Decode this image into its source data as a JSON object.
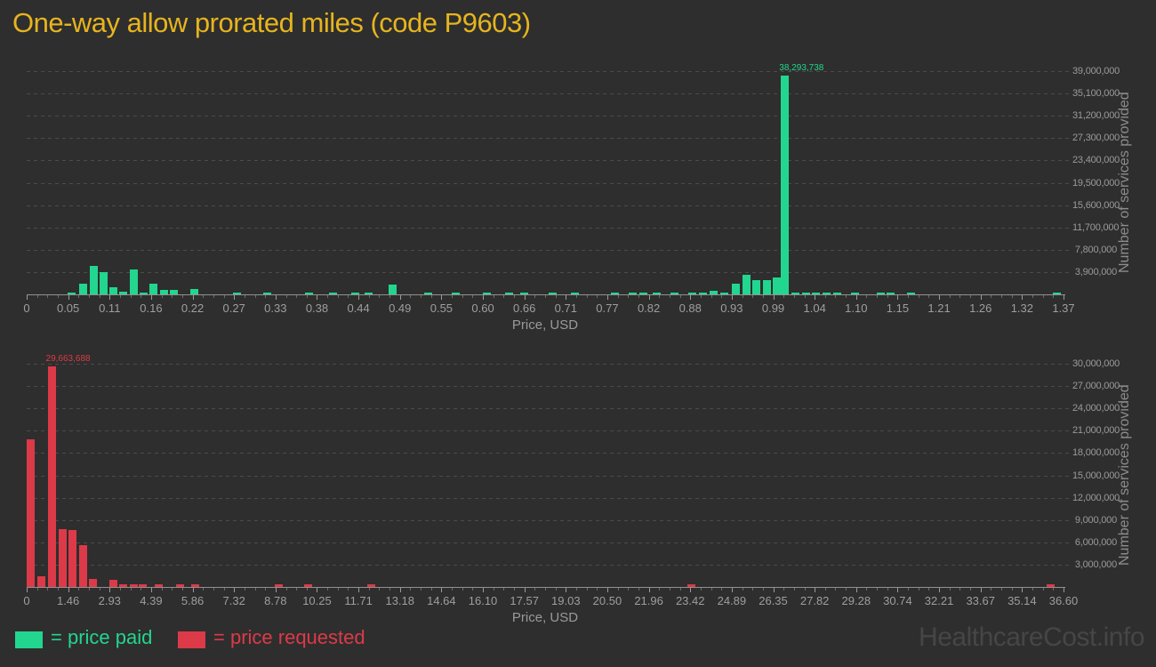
{
  "title": "One-way allow prorated miles (code P9603)",
  "watermark": "HealthcareCost.info",
  "colors": {
    "background": "#2e2e2e",
    "title": "#e6b41e",
    "price_paid": "#23d68f",
    "price_requested": "#dc3a48",
    "axis_text": "#9a9a9a",
    "watermark": "#464646"
  },
  "legend": {
    "items": [
      {
        "label": "= price paid",
        "color": "#23d68f"
      },
      {
        "label": "= price requested",
        "color": "#dc3a48"
      }
    ]
  },
  "chart_data": [
    {
      "type": "bar",
      "series": "price paid",
      "color": "#23d68f",
      "xlabel": "Price, USD",
      "ylabel": "Number of services provided",
      "xlim": [
        0,
        1.37
      ],
      "ylim": [
        0,
        39000000
      ],
      "grid": "dashed-horizontal",
      "legend_position": "bottom-left",
      "x_tick_labels": [
        "0",
        "0.05",
        "0.11",
        "0.16",
        "0.22",
        "0.27",
        "0.33",
        "0.38",
        "0.44",
        "0.49",
        "0.55",
        "0.60",
        "0.66",
        "0.71",
        "0.77",
        "0.82",
        "0.88",
        "0.93",
        "0.99",
        "1.04",
        "1.10",
        "1.15",
        "1.21",
        "1.26",
        "1.32",
        "1.37"
      ],
      "y_tick_values": [
        3900000,
        7800000,
        11700000,
        15600000,
        19500000,
        23400000,
        27300000,
        31200000,
        35100000,
        39000000
      ],
      "peak_label": "38,293,738",
      "bars": [
        {
          "price": 0.059,
          "value": 300000
        },
        {
          "price": 0.075,
          "value": 1850000
        },
        {
          "price": 0.089,
          "value": 5000000
        },
        {
          "price": 0.102,
          "value": 3900000
        },
        {
          "price": 0.115,
          "value": 1300000
        },
        {
          "price": 0.128,
          "value": 500000
        },
        {
          "price": 0.141,
          "value": 4400000
        },
        {
          "price": 0.155,
          "value": 250000
        },
        {
          "price": 0.168,
          "value": 1800000
        },
        {
          "price": 0.181,
          "value": 700000
        },
        {
          "price": 0.195,
          "value": 850000
        },
        {
          "price": 0.222,
          "value": 1000000
        },
        {
          "price": 0.278,
          "value": 250000
        },
        {
          "price": 0.318,
          "value": 250000
        },
        {
          "price": 0.373,
          "value": 250000
        },
        {
          "price": 0.405,
          "value": 250000
        },
        {
          "price": 0.434,
          "value": 200000
        },
        {
          "price": 0.452,
          "value": 200000
        },
        {
          "price": 0.484,
          "value": 1750000
        },
        {
          "price": 0.531,
          "value": 200000
        },
        {
          "price": 0.567,
          "value": 200000
        },
        {
          "price": 0.608,
          "value": 200000
        },
        {
          "price": 0.637,
          "value": 250000
        },
        {
          "price": 0.657,
          "value": 250000
        },
        {
          "price": 0.695,
          "value": 200000
        },
        {
          "price": 0.724,
          "value": 250000
        },
        {
          "price": 0.777,
          "value": 250000
        },
        {
          "price": 0.801,
          "value": 200000
        },
        {
          "price": 0.815,
          "value": 250000
        },
        {
          "price": 0.833,
          "value": 250000
        },
        {
          "price": 0.856,
          "value": 250000
        },
        {
          "price": 0.88,
          "value": 200000
        },
        {
          "price": 0.893,
          "value": 300000
        },
        {
          "price": 0.908,
          "value": 550000
        },
        {
          "price": 0.922,
          "value": 250000
        },
        {
          "price": 0.937,
          "value": 1800000
        },
        {
          "price": 0.951,
          "value": 3400000
        },
        {
          "price": 0.964,
          "value": 2500000
        },
        {
          "price": 0.978,
          "value": 2550000
        },
        {
          "price": 0.991,
          "value": 2900000
        },
        {
          "price": 1.002,
          "value": 38293738
        },
        {
          "price": 1.016,
          "value": 250000
        },
        {
          "price": 1.03,
          "value": 250000
        },
        {
          "price": 1.043,
          "value": 250000
        },
        {
          "price": 1.057,
          "value": 250000
        },
        {
          "price": 1.071,
          "value": 250000
        },
        {
          "price": 1.095,
          "value": 200000
        },
        {
          "price": 1.128,
          "value": 250000
        },
        {
          "price": 1.142,
          "value": 250000
        },
        {
          "price": 1.168,
          "value": 250000
        },
        {
          "price": 1.361,
          "value": 250000
        }
      ]
    },
    {
      "type": "bar",
      "series": "price requested",
      "color": "#dc3a48",
      "xlabel": "Price, USD",
      "ylabel": "Number of services provided",
      "xlim": [
        0,
        36.6
      ],
      "ylim": [
        0,
        30000000
      ],
      "grid": "dashed-horizontal",
      "legend_position": "bottom-left",
      "x_tick_labels": [
        "0",
        "1.46",
        "2.93",
        "4.39",
        "5.86",
        "7.32",
        "8.78",
        "10.25",
        "11.71",
        "13.18",
        "14.64",
        "16.10",
        "17.57",
        "19.03",
        "20.50",
        "21.96",
        "23.42",
        "24.89",
        "26.35",
        "27.82",
        "29.28",
        "30.74",
        "32.21",
        "33.67",
        "35.14",
        "36.60"
      ],
      "y_tick_values": [
        3000000,
        6000000,
        9000000,
        12000000,
        15000000,
        18000000,
        21000000,
        24000000,
        27000000,
        30000000
      ],
      "peak_label": "29,663,688",
      "bars": [
        {
          "price": 0.15,
          "value": 19800000
        },
        {
          "price": 0.53,
          "value": 1400000
        },
        {
          "price": 0.88,
          "value": 29663688
        },
        {
          "price": 1.27,
          "value": 7750000
        },
        {
          "price": 1.62,
          "value": 7700000
        },
        {
          "price": 1.99,
          "value": 5600000
        },
        {
          "price": 2.35,
          "value": 1100000
        },
        {
          "price": 3.06,
          "value": 1000000
        },
        {
          "price": 3.42,
          "value": 300000
        },
        {
          "price": 3.78,
          "value": 300000
        },
        {
          "price": 4.1,
          "value": 300000
        },
        {
          "price": 4.65,
          "value": 300000
        },
        {
          "price": 5.4,
          "value": 300000
        },
        {
          "price": 5.95,
          "value": 300000
        },
        {
          "price": 8.9,
          "value": 300000
        },
        {
          "price": 9.95,
          "value": 300000
        },
        {
          "price": 12.15,
          "value": 300000
        },
        {
          "price": 23.45,
          "value": 350000
        },
        {
          "price": 36.15,
          "value": 350000
        }
      ]
    }
  ]
}
